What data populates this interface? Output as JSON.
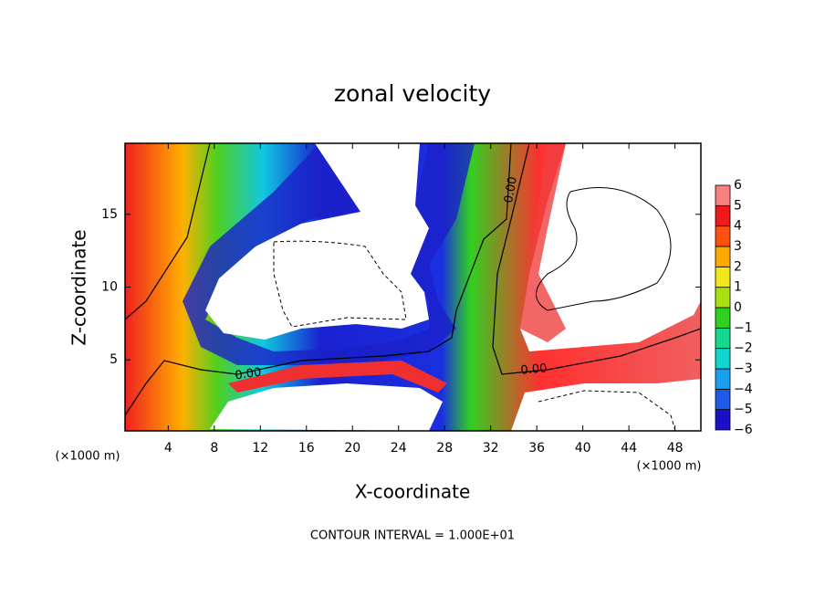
{
  "chart_data": {
    "type": "contour",
    "title": "zonal velocity",
    "x_label": "X-coordinate",
    "y_label": "Z-coordinate",
    "x_unit_label": "(×1000 m)",
    "y_unit_label": "(×1000 m)",
    "footer": "CONTOUR INTERVAL = 1.000E+01",
    "contour_labels": [
      "0.00",
      "0.00",
      "0.00"
    ],
    "xlim": [
      0.25,
      50.25
    ],
    "ylim": [
      0.125,
      19.875
    ],
    "xticks": [
      4,
      8,
      12,
      16,
      20,
      24,
      28,
      32,
      36,
      40,
      44,
      48
    ],
    "yticks": [
      5,
      10,
      15
    ],
    "colorbar": {
      "levels": [
        {
          "value": -6,
          "label": "−6"
        },
        {
          "value": -5,
          "label": "−5"
        },
        {
          "value": -4,
          "label": "−4"
        },
        {
          "value": -3,
          "label": "−3"
        },
        {
          "value": -2,
          "label": "−2"
        },
        {
          "value": -1,
          "label": "−1"
        },
        0,
        1,
        2,
        3,
        4,
        5,
        6
      ],
      "colors": [
        "#7a1fa8",
        "#1a10c8",
        "#1e5ae6",
        "#1aa0f0",
        "#10d6d0",
        "#14d890",
        "#30d020",
        "#a8e010",
        "#f0e818",
        "#ffa800",
        "#ff5010",
        "#f01818",
        "#f88080"
      ]
    }
  }
}
